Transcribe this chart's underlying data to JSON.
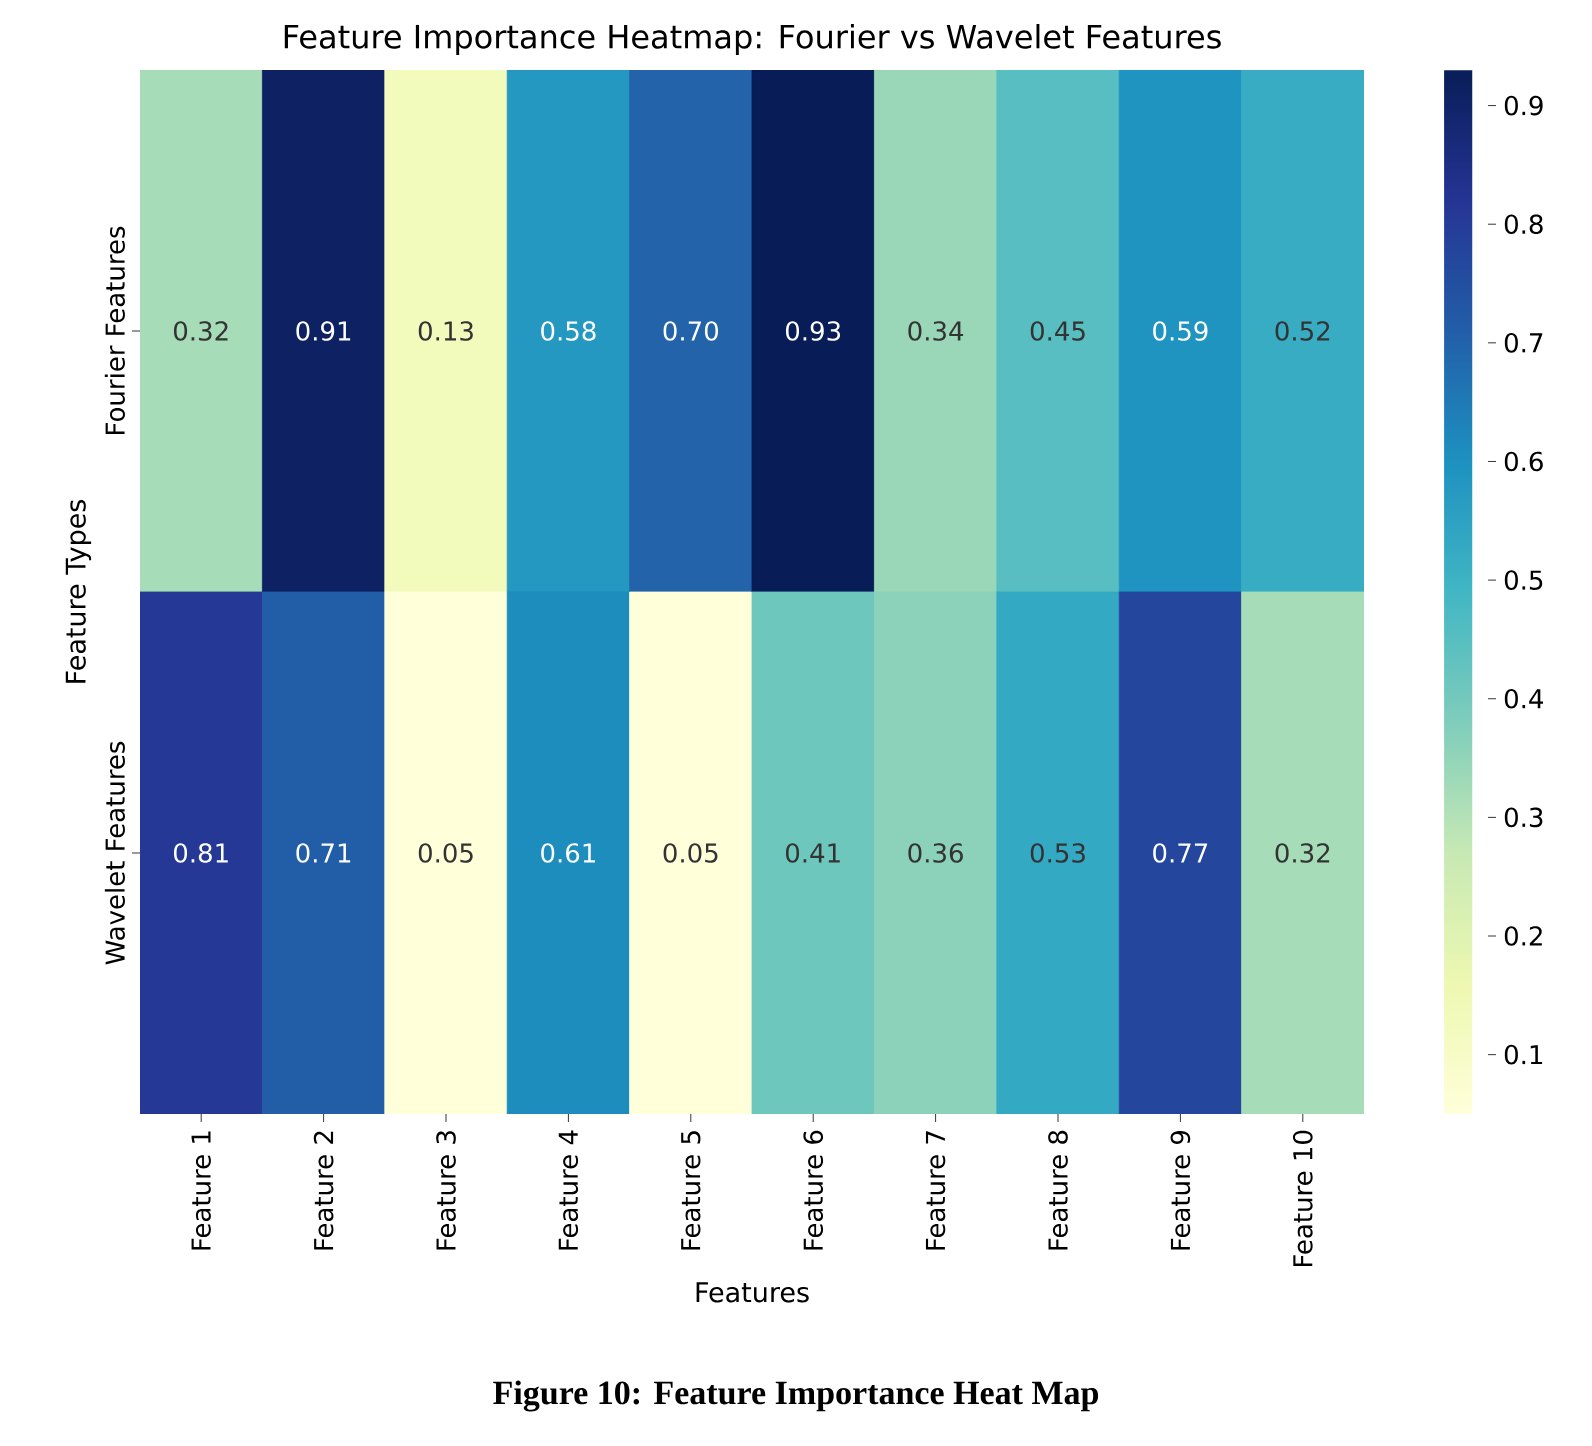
{
  "chart_data": {
    "type": "heatmap",
    "title": "Feature Importance Heatmap: Fourier vs Wavelet Features",
    "xlabel": "Features",
    "ylabel": "Feature Types",
    "categories": [
      "Feature 1",
      "Feature 2",
      "Feature 3",
      "Feature 4",
      "Feature 5",
      "Feature 6",
      "Feature 7",
      "Feature 8",
      "Feature 9",
      "Feature 10"
    ],
    "y_categories": [
      "Fourier Features",
      "Wavelet Features"
    ],
    "cells": [
      [
        0.32,
        0.91,
        0.13,
        0.58,
        0.7,
        0.93,
        0.34,
        0.45,
        0.59,
        0.52
      ],
      [
        0.81,
        0.71,
        0.05,
        0.61,
        0.05,
        0.41,
        0.36,
        0.53,
        0.77,
        0.32
      ]
    ],
    "cell_labels": [
      [
        "0.32",
        "0.91",
        "0.13",
        "0.58",
        "0.70",
        "0.93",
        "0.34",
        "0.45",
        "0.59",
        "0.52"
      ],
      [
        "0.81",
        "0.71",
        "0.05",
        "0.61",
        "0.05",
        "0.41",
        "0.36",
        "0.53",
        "0.77",
        "0.32"
      ]
    ],
    "clim": [
      0.05,
      0.93
    ],
    "cticks": [
      0.1,
      0.2,
      0.3,
      0.4,
      0.5,
      0.6,
      0.7,
      0.8,
      0.9
    ],
    "annotations": [
      "Figure 10: Feature Importance Heat Map"
    ]
  }
}
